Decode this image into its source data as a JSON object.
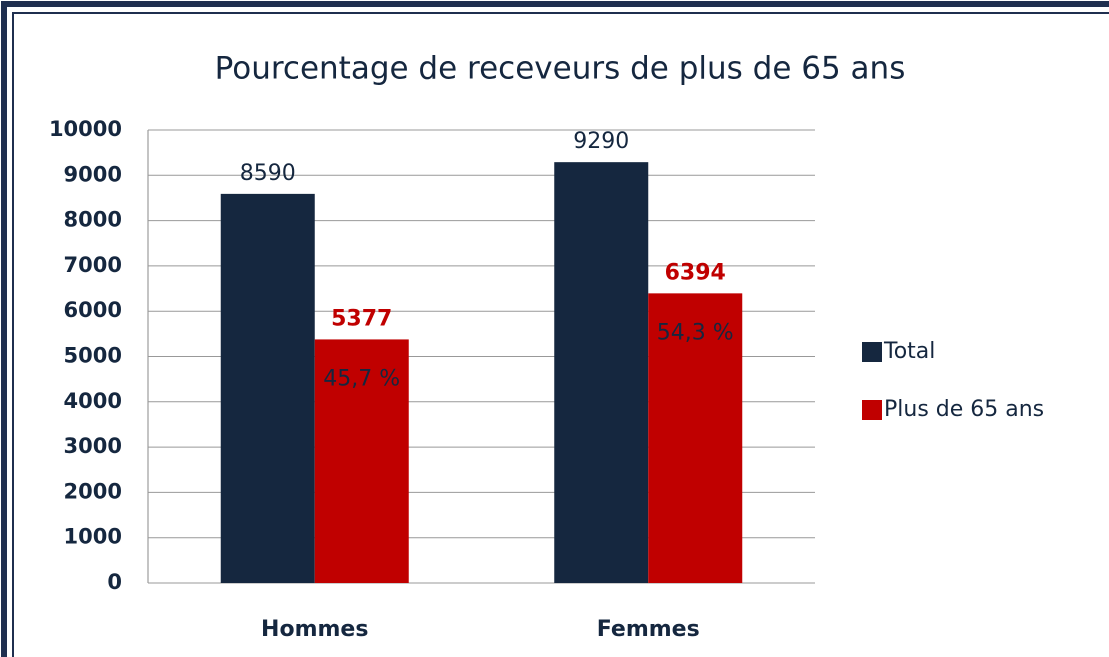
{
  "chart_data": {
    "type": "bar",
    "title": "Pourcentage de receveurs de plus de 65 ans",
    "categories": [
      "Hommes",
      "Femmes"
    ],
    "series": [
      {
        "name": "Total",
        "color": "#15273f",
        "values": [
          8590,
          9290
        ]
      },
      {
        "name": "Plus de 65 ans",
        "color": "#c00000",
        "values": [
          5377,
          6394
        ]
      }
    ],
    "annotations": [
      "45,7 %",
      "54,3 %"
    ],
    "ylim": [
      0,
      10000
    ],
    "yticks": [
      0,
      1000,
      2000,
      3000,
      4000,
      5000,
      6000,
      7000,
      8000,
      9000,
      10000
    ],
    "grid": true,
    "legend": "right"
  }
}
